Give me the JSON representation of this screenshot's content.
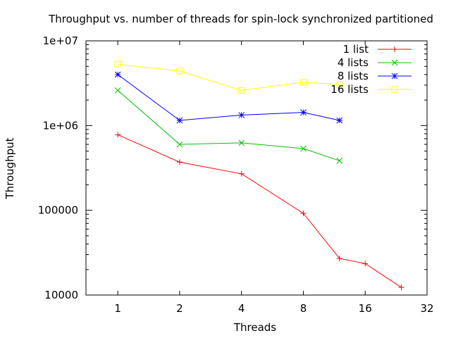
{
  "chart_data": {
    "type": "line",
    "title": "Throughput vs. number of threads for spin-lock synchronized partitioned",
    "xlabel": "Threads",
    "ylabel": "Throughput",
    "x_scale": "log2",
    "y_scale": "log10",
    "xlim": [
      0.7,
      32
    ],
    "ylim": [
      10000,
      10000000
    ],
    "x_ticks": [
      1,
      2,
      4,
      8,
      16,
      32
    ],
    "x_tick_labels": [
      "1",
      "2",
      "4",
      "8",
      "16",
      "32"
    ],
    "y_ticks": [
      10000,
      100000,
      1000000,
      10000000
    ],
    "y_tick_labels": [
      "10000",
      "100000",
      "1e+06",
      "1e+07"
    ],
    "legend_position": "top-right",
    "grid": false,
    "series": [
      {
        "name": "1 list",
        "color": "#ff0000",
        "marker": "plus",
        "x": [
          1,
          2,
          4,
          8,
          12,
          16,
          24
        ],
        "y": [
          780000,
          370000,
          270000,
          92000,
          27000,
          23500,
          12300
        ]
      },
      {
        "name": "4 lists",
        "color": "#00c000",
        "marker": "cross",
        "x": [
          1,
          2,
          4,
          8,
          12
        ],
        "y": [
          2600000,
          600000,
          625000,
          535000,
          385000
        ]
      },
      {
        "name": "8 lists",
        "color": "#0000ff",
        "marker": "star",
        "x": [
          1,
          2,
          4,
          8,
          12
        ],
        "y": [
          4000000,
          1150000,
          1330000,
          1430000,
          1150000
        ]
      },
      {
        "name": "16 lists",
        "color": "#ffff00",
        "marker": "square",
        "x": [
          1,
          2,
          4,
          8,
          12
        ],
        "y": [
          5300000,
          4400000,
          2600000,
          3250000,
          3050000
        ]
      }
    ]
  }
}
